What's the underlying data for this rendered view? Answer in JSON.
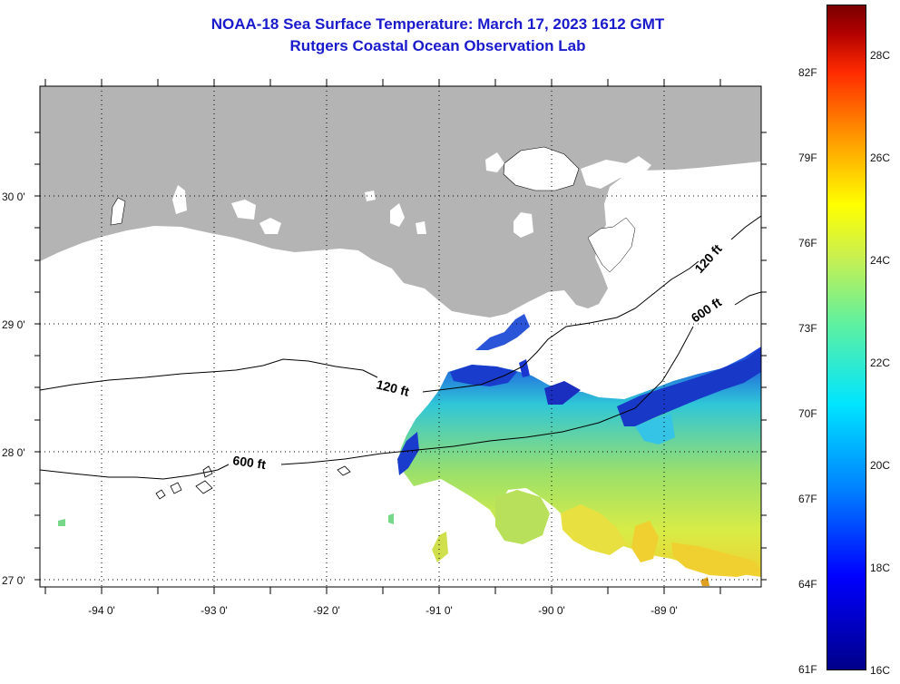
{
  "header": {
    "title": "NOAA-18 Sea Surface Temperature:  March 17, 2023 1612 GMT",
    "subtitle": "Rutgers Coastal Ocean Observation Lab"
  },
  "map": {
    "lat_labels": [
      "30 0'",
      "29 0'",
      "28 0'",
      "27 0'"
    ],
    "lon_labels": [
      "-94 0'",
      "-93 0'",
      "-92 0'",
      "-91 0'",
      "-90 0'",
      "-89 0'"
    ],
    "contour_labels": [
      "120 ft",
      "600 ft",
      "120 ft",
      "600 ft"
    ],
    "land_color": "#b4b4b4"
  },
  "colorbar": {
    "fahrenheit_labels": [
      "82F",
      "79F",
      "76F",
      "73F",
      "70F",
      "67F",
      "64F",
      "61F"
    ],
    "celsius_labels": [
      "28C",
      "26C",
      "24C",
      "22C",
      "20C",
      "18C",
      "16C"
    ]
  }
}
